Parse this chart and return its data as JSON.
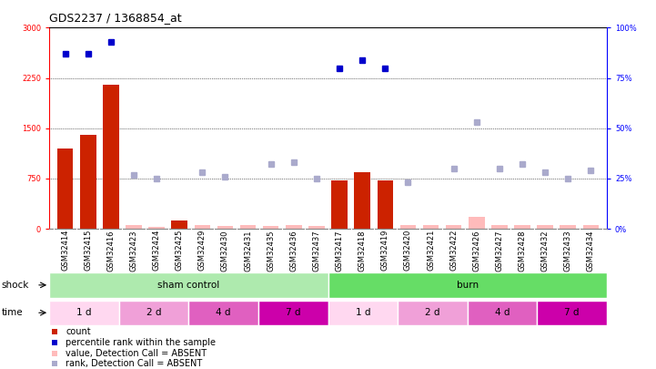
{
  "title": "GDS2237 / 1368854_at",
  "samples": [
    "GSM32414",
    "GSM32415",
    "GSM32416",
    "GSM32423",
    "GSM32424",
    "GSM32425",
    "GSM32429",
    "GSM32430",
    "GSM32431",
    "GSM32435",
    "GSM32436",
    "GSM32437",
    "GSM32417",
    "GSM32418",
    "GSM32419",
    "GSM32420",
    "GSM32421",
    "GSM32422",
    "GSM32426",
    "GSM32427",
    "GSM32428",
    "GSM32432",
    "GSM32433",
    "GSM32434"
  ],
  "count_values": [
    1200,
    1400,
    2150,
    0,
    0,
    120,
    0,
    0,
    0,
    0,
    0,
    0,
    720,
    850,
    720,
    0,
    0,
    0,
    0,
    0,
    0,
    0,
    0,
    0
  ],
  "count_absent": [
    false,
    false,
    false,
    true,
    true,
    false,
    true,
    true,
    true,
    true,
    true,
    true,
    false,
    false,
    false,
    true,
    true,
    true,
    true,
    true,
    true,
    true,
    true,
    true
  ],
  "percentile_present": [
    87,
    87,
    93,
    null,
    null,
    null,
    null,
    null,
    null,
    null,
    null,
    null,
    80,
    84,
    80,
    null,
    null,
    null,
    null,
    null,
    null,
    null,
    null,
    null
  ],
  "percentile_absent": [
    null,
    null,
    null,
    27,
    25,
    null,
    28,
    26,
    null,
    32,
    33,
    25,
    null,
    null,
    null,
    23,
    null,
    30,
    53,
    30,
    32,
    28,
    25,
    29
  ],
  "absent_count_values": [
    null,
    null,
    null,
    50,
    30,
    null,
    60,
    40,
    50,
    40,
    50,
    40,
    null,
    null,
    null,
    50,
    50,
    50,
    180,
    60,
    50,
    50,
    50,
    60
  ],
  "ylim_left": [
    0,
    3000
  ],
  "ylim_right": [
    0,
    100
  ],
  "yticks_left": [
    0,
    750,
    1500,
    2250,
    3000
  ],
  "yticks_right": [
    0,
    25,
    50,
    75,
    100
  ],
  "shock_groups": [
    {
      "label": "sham control",
      "start": 0,
      "end": 12,
      "color": "#aeeaae"
    },
    {
      "label": "burn",
      "start": 12,
      "end": 24,
      "color": "#66dd66"
    }
  ],
  "time_groups": [
    {
      "label": "1 d",
      "start": 0,
      "end": 3,
      "color": "#ffd8f0"
    },
    {
      "label": "2 d",
      "start": 3,
      "end": 6,
      "color": "#f0a0d8"
    },
    {
      "label": "4 d",
      "start": 6,
      "end": 9,
      "color": "#e060c0"
    },
    {
      "label": "7 d",
      "start": 9,
      "end": 12,
      "color": "#cc00aa"
    },
    {
      "label": "1 d",
      "start": 12,
      "end": 15,
      "color": "#ffd8f0"
    },
    {
      "label": "2 d",
      "start": 15,
      "end": 18,
      "color": "#f0a0d8"
    },
    {
      "label": "4 d",
      "start": 18,
      "end": 21,
      "color": "#e060c0"
    },
    {
      "label": "7 d",
      "start": 21,
      "end": 24,
      "color": "#cc00aa"
    }
  ],
  "bar_color_present": "#CC2200",
  "bar_color_absent": "#FFBBBB",
  "dot_color_present": "#0000CC",
  "dot_color_absent": "#AAAACC",
  "background_color": "#FFFFFF",
  "title_fontsize": 9,
  "tick_fontsize": 6,
  "label_fontsize": 7.5
}
